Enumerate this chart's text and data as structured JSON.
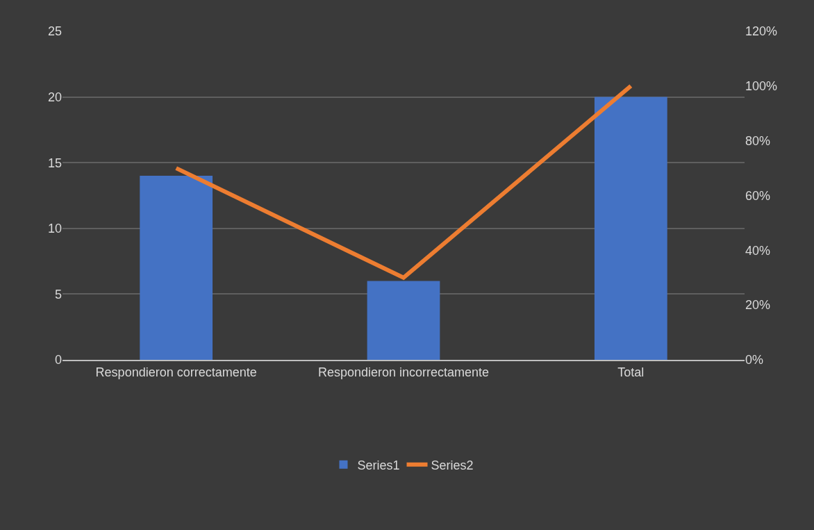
{
  "chart_data": {
    "type": "bar",
    "categories": [
      "Respondieron correctamente",
      "Respondieron incorrectamente",
      "Total"
    ],
    "series": [
      {
        "name": "Series1",
        "color": "#4472c4",
        "values": [
          14,
          6,
          20
        ]
      },
      {
        "name": "Series2",
        "type": "line",
        "axis": "y2",
        "color": "#ed7d31",
        "values": [
          70,
          30,
          100
        ],
        "marker": "none",
        "line_style": "solid"
      }
    ],
    "ylim": [
      0,
      25
    ],
    "yticks": [
      0,
      5,
      10,
      15,
      20,
      25
    ],
    "y2lim": [
      0,
      120
    ],
    "y2ticks": [
      {
        "value": 0,
        "label": "0%"
      },
      {
        "value": 20,
        "label": "20%"
      },
      {
        "value": 40,
        "label": "40%"
      },
      {
        "value": 60,
        "label": "60%"
      },
      {
        "value": 80,
        "label": "80%"
      },
      {
        "value": 100,
        "label": "100%"
      },
      {
        "value": 120,
        "label": "120%"
      }
    ],
    "grid": "y",
    "legend": "bottom"
  }
}
